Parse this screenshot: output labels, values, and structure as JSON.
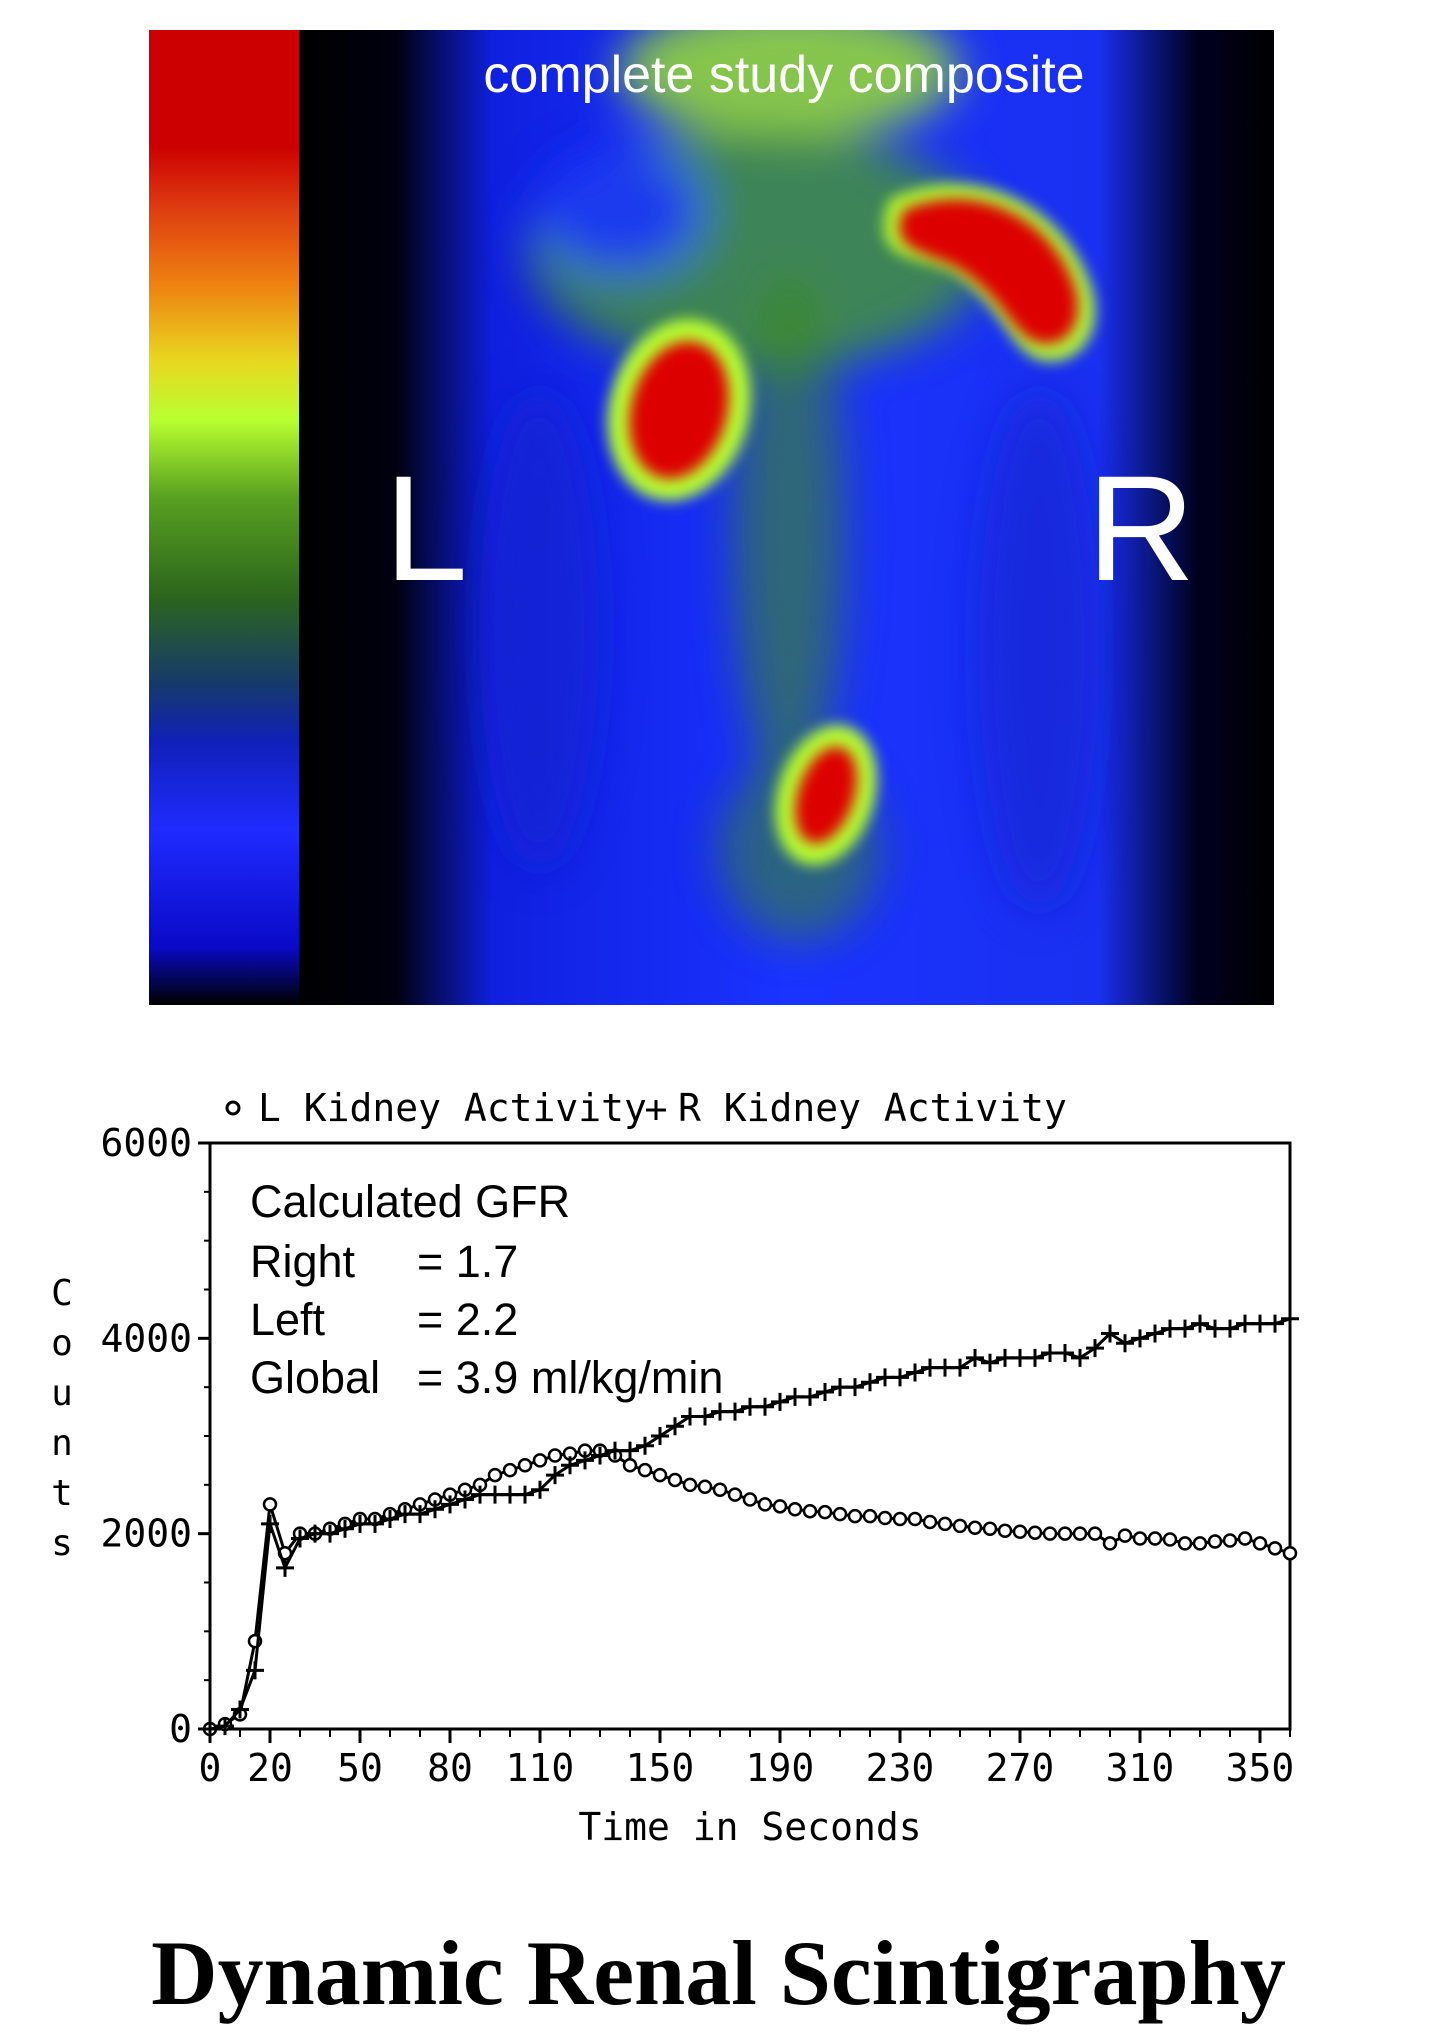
{
  "scan": {
    "caption": "complete study composite",
    "left_label": "L",
    "right_label": "R",
    "colorbar": [
      "#ffffff",
      "#000000",
      "#0a0ad0",
      "#1f2bff",
      "#0f1fb0",
      "#1c3f5a",
      "#2f6a1c",
      "#58a020",
      "#b8ff30",
      "#f0d020",
      "#ee8010",
      "#dd4010",
      "#cc0000"
    ]
  },
  "page": {
    "title": "Dynamic Renal Scintigraphy"
  },
  "chart_data": {
    "type": "line",
    "xlabel": "Time in Seconds",
    "ylabel": "Counts",
    "xlim": [
      0,
      360
    ],
    "ylim": [
      0,
      6000
    ],
    "x_ticks": [
      0,
      20,
      50,
      80,
      110,
      150,
      190,
      230,
      270,
      310,
      350
    ],
    "y_ticks": [
      0,
      2000,
      4000,
      6000
    ],
    "legend_position": "top",
    "grid": false,
    "annotation": {
      "heading": "Calculated GFR",
      "rows": [
        {
          "label": "Right",
          "value": "= 1.7"
        },
        {
          "label": "Left",
          "value": "= 2.2"
        },
        {
          "label": "Global",
          "value": "= 3.9 ml/kg/min"
        }
      ]
    },
    "series": [
      {
        "name": "L Kidney Activity",
        "marker": "circle",
        "x": [
          0,
          5,
          10,
          15,
          20,
          25,
          30,
          35,
          40,
          45,
          50,
          55,
          60,
          65,
          70,
          75,
          80,
          85,
          90,
          95,
          100,
          105,
          110,
          115,
          120,
          125,
          130,
          135,
          140,
          145,
          150,
          155,
          160,
          165,
          170,
          175,
          180,
          185,
          190,
          195,
          200,
          205,
          210,
          215,
          220,
          225,
          230,
          235,
          240,
          245,
          250,
          255,
          260,
          265,
          270,
          275,
          280,
          285,
          290,
          295,
          300,
          305,
          310,
          315,
          320,
          325,
          330,
          335,
          340,
          345,
          350,
          355,
          360
        ],
        "y": [
          0,
          50,
          150,
          900,
          2300,
          1800,
          2000,
          2000,
          2050,
          2100,
          2150,
          2150,
          2200,
          2250,
          2300,
          2350,
          2400,
          2450,
          2500,
          2600,
          2650,
          2700,
          2750,
          2800,
          2820,
          2850,
          2850,
          2800,
          2700,
          2650,
          2600,
          2550,
          2500,
          2480,
          2450,
          2400,
          2350,
          2300,
          2280,
          2250,
          2230,
          2220,
          2200,
          2180,
          2180,
          2160,
          2150,
          2150,
          2120,
          2100,
          2080,
          2060,
          2050,
          2030,
          2020,
          2010,
          2000,
          2000,
          2000,
          2000,
          1900,
          1980,
          1950,
          1950,
          1940,
          1900,
          1900,
          1920,
          1930,
          1950,
          1900,
          1850,
          1800
        ]
      },
      {
        "name": "R Kidney Activity",
        "marker": "plus",
        "x": [
          0,
          5,
          10,
          15,
          20,
          25,
          30,
          35,
          40,
          45,
          50,
          55,
          60,
          65,
          70,
          75,
          80,
          85,
          90,
          95,
          100,
          105,
          110,
          115,
          120,
          125,
          130,
          135,
          140,
          145,
          150,
          155,
          160,
          165,
          170,
          175,
          180,
          185,
          190,
          195,
          200,
          205,
          210,
          215,
          220,
          225,
          230,
          235,
          240,
          245,
          250,
          255,
          260,
          265,
          270,
          275,
          280,
          285,
          290,
          295,
          300,
          305,
          310,
          315,
          320,
          325,
          330,
          335,
          340,
          345,
          350,
          355,
          360
        ],
        "y": [
          0,
          30,
          200,
          600,
          2100,
          1650,
          1950,
          2000,
          2000,
          2050,
          2100,
          2100,
          2150,
          2200,
          2200,
          2250,
          2300,
          2350,
          2400,
          2400,
          2400,
          2400,
          2450,
          2600,
          2700,
          2750,
          2800,
          2850,
          2850,
          2900,
          3000,
          3100,
          3200,
          3200,
          3250,
          3250,
          3300,
          3300,
          3350,
          3400,
          3400,
          3450,
          3500,
          3500,
          3550,
          3600,
          3600,
          3650,
          3700,
          3700,
          3700,
          3800,
          3750,
          3800,
          3800,
          3800,
          3850,
          3850,
          3800,
          3900,
          4050,
          3950,
          4000,
          4050,
          4100,
          4100,
          4150,
          4100,
          4100,
          4150,
          4150,
          4150,
          4200
        ]
      }
    ]
  }
}
